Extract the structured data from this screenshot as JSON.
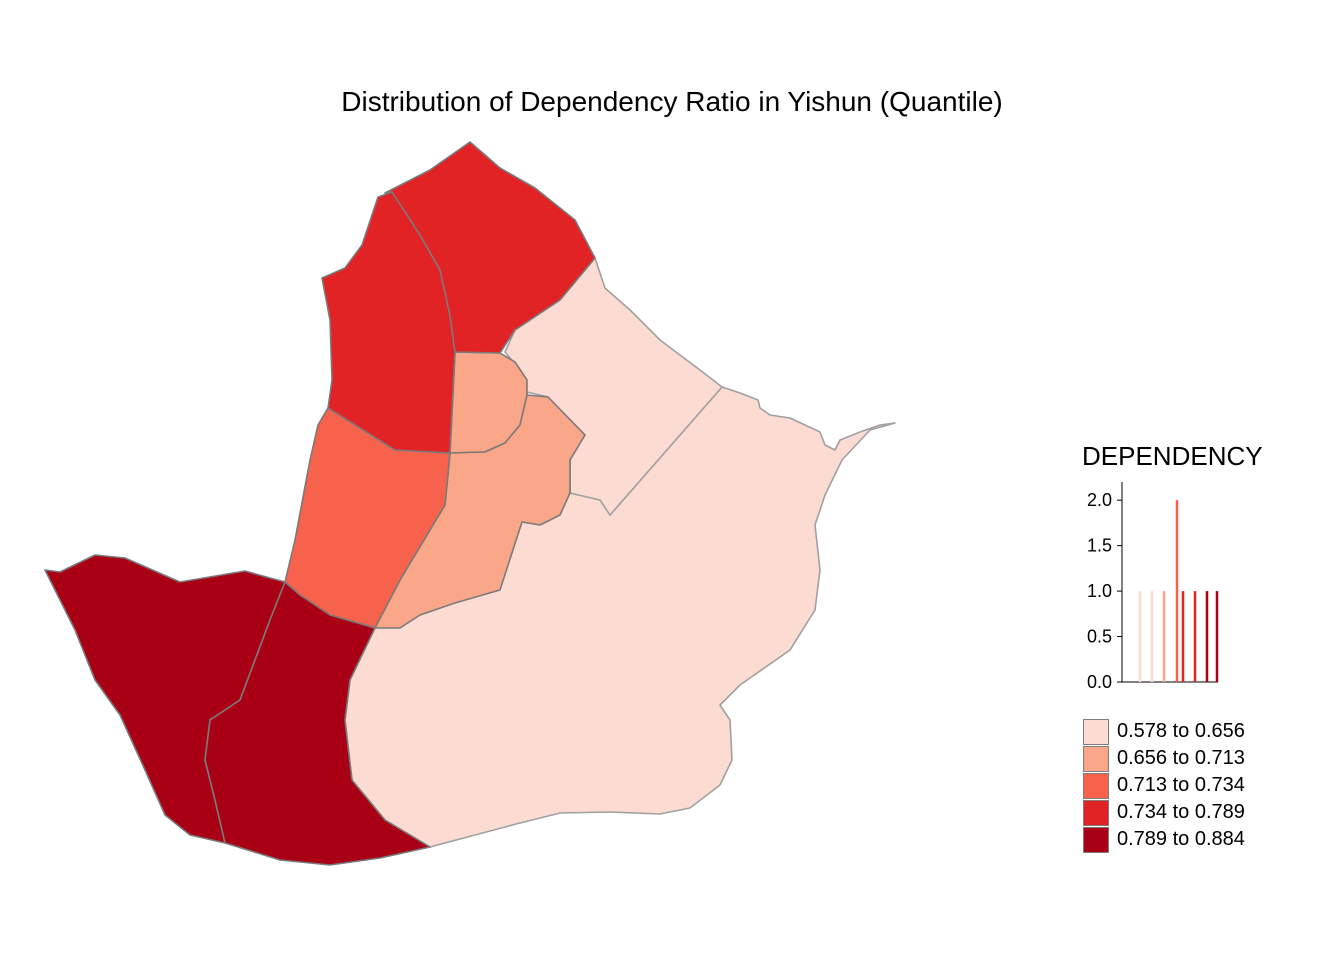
{
  "title": "Distribution of Dependency Ratio in Yishun (Quantile)",
  "legend": {
    "title": "DEPENDENCY",
    "histogram": {
      "y_ticks": [
        "0.0",
        "0.5",
        "1.0",
        "1.5",
        "2.0"
      ],
      "ylim": [
        0,
        2.2
      ],
      "bars": [
        {
          "value": 1,
          "class_index": 0
        },
        {
          "value": 1,
          "class_index": 0
        },
        {
          "value": 1,
          "class_index": 1
        },
        {
          "value": 2,
          "class_index": 2
        },
        {
          "value": 1,
          "class_index": 3
        },
        {
          "value": 1,
          "class_index": 3
        },
        {
          "value": 1,
          "class_index": 4
        },
        {
          "value": 1,
          "class_index": 4
        }
      ]
    },
    "classes": [
      {
        "label": "0.578 to 0.656",
        "color": "#fcdcd2"
      },
      {
        "label": "0.656 to 0.713",
        "color": "#f9a689"
      },
      {
        "label": "0.713 to 0.734",
        "color": "#f6624c"
      },
      {
        "label": "0.734 to 0.789",
        "color": "#e22326"
      },
      {
        "label": "0.789 to 0.884",
        "color": "#aa0016"
      }
    ]
  },
  "chart_data": {
    "type": "choropleth",
    "title": "Distribution of Dependency Ratio in Yishun (Quantile)",
    "variable": "DEPENDENCY",
    "classification": "quantile",
    "breaks": [
      0.578,
      0.656,
      0.713,
      0.734,
      0.789,
      0.884
    ],
    "regions_per_class": [
      2,
      2,
      1,
      2,
      2
    ]
  }
}
